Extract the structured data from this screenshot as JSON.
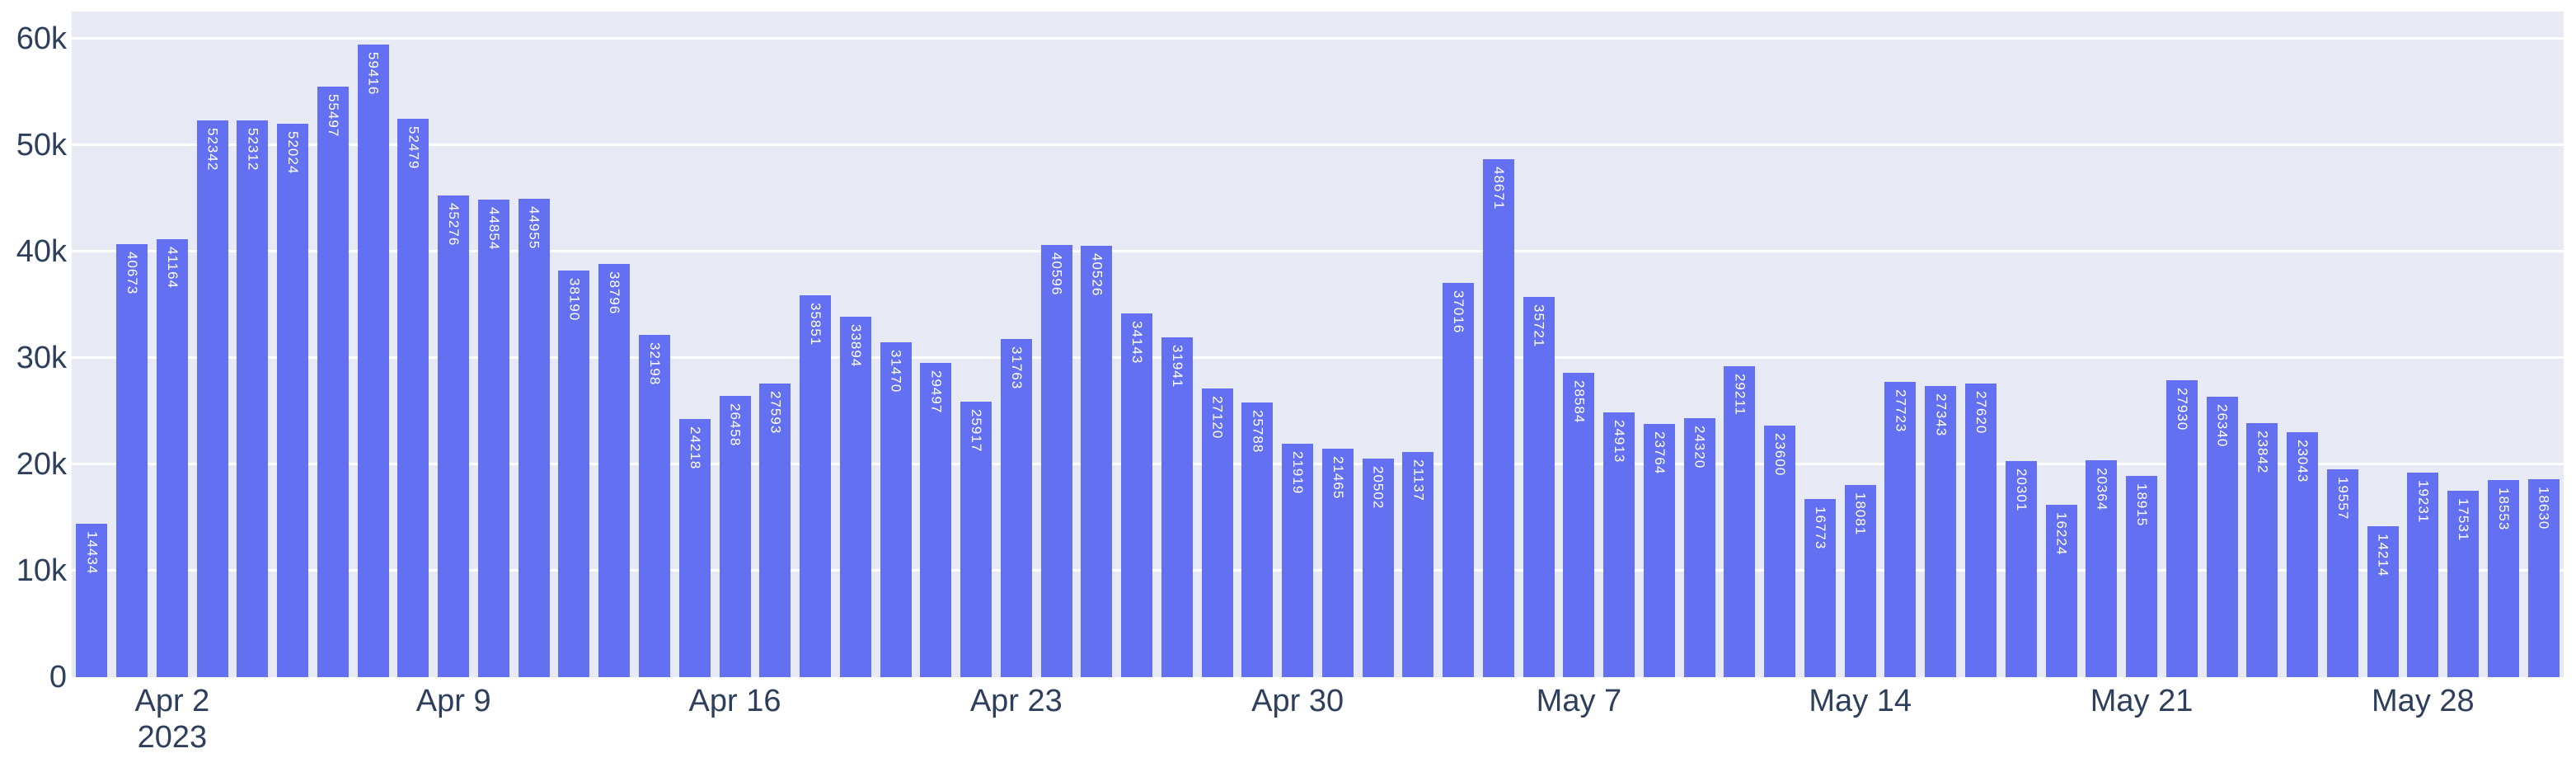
{
  "colors": {
    "paper_bg": "#FFFFFF",
    "plot_bg": "#E7E9F4",
    "bar_fill": "#6470F2",
    "grid": "#FFFFFF",
    "tick_text": "#2E3F5C",
    "bar_label_text": "#FFFFFF"
  },
  "chart_data": {
    "type": "bar",
    "title": "",
    "xlabel": "",
    "ylabel": "",
    "legend": "none",
    "grid": "horizontal-white",
    "ylim": [
      0,
      62500
    ],
    "x": [
      "2023-03-31",
      "2023-04-01",
      "2023-04-02",
      "2023-04-03",
      "2023-04-04",
      "2023-04-05",
      "2023-04-06",
      "2023-04-07",
      "2023-04-08",
      "2023-04-09",
      "2023-04-10",
      "2023-04-11",
      "2023-04-12",
      "2023-04-13",
      "2023-04-14",
      "2023-04-15",
      "2023-04-16",
      "2023-04-17",
      "2023-04-18",
      "2023-04-19",
      "2023-04-20",
      "2023-04-21",
      "2023-04-22",
      "2023-04-23",
      "2023-04-24",
      "2023-04-25",
      "2023-04-26",
      "2023-04-27",
      "2023-04-28",
      "2023-04-29",
      "2023-04-30",
      "2023-05-01",
      "2023-05-02",
      "2023-05-03",
      "2023-05-04",
      "2023-05-05",
      "2023-05-06",
      "2023-05-07",
      "2023-05-08",
      "2023-05-09",
      "2023-05-10",
      "2023-05-11",
      "2023-05-12",
      "2023-05-13",
      "2023-05-14",
      "2023-05-15",
      "2023-05-16",
      "2023-05-17",
      "2023-05-18",
      "2023-05-19",
      "2023-05-20",
      "2023-05-21",
      "2023-05-22",
      "2023-05-23",
      "2023-05-24",
      "2023-05-25",
      "2023-05-26",
      "2023-05-27",
      "2023-05-28",
      "2023-05-29",
      "2023-05-30",
      "2023-05-31"
    ],
    "values": [
      14434,
      40673,
      41164,
      52342,
      52312,
      52024,
      55497,
      59416,
      52479,
      45276,
      44854,
      44955,
      38190,
      38796,
      32198,
      24218,
      26458,
      27593,
      35851,
      33894,
      31470,
      29497,
      25917,
      31763,
      40596,
      40526,
      34143,
      31941,
      27120,
      25788,
      21919,
      21465,
      20502,
      21137,
      37016,
      48671,
      35721,
      28584,
      24913,
      23764,
      24320,
      29211,
      23600,
      16773,
      18081,
      27723,
      27343,
      27620,
      20301,
      16224,
      20364,
      18915,
      27930,
      26340,
      23842,
      23043,
      19557,
      14214,
      19231,
      17531,
      18553,
      18630
    ],
    "bar_value_labels_shown": true,
    "x_ticks": [
      {
        "index": 2,
        "label": "Apr 2",
        "sublabel": "2023"
      },
      {
        "index": 9,
        "label": "Apr 9"
      },
      {
        "index": 16,
        "label": "Apr 16"
      },
      {
        "index": 23,
        "label": "Apr 23"
      },
      {
        "index": 30,
        "label": "Apr 30"
      },
      {
        "index": 37,
        "label": "May 7"
      },
      {
        "index": 44,
        "label": "May 14"
      },
      {
        "index": 51,
        "label": "May 21"
      },
      {
        "index": 58,
        "label": "May 28"
      }
    ],
    "y_ticks": [
      {
        "value": 0,
        "label": "0"
      },
      {
        "value": 10000,
        "label": "10k"
      },
      {
        "value": 20000,
        "label": "20k"
      },
      {
        "value": 30000,
        "label": "30k"
      },
      {
        "value": 40000,
        "label": "40k"
      },
      {
        "value": 50000,
        "label": "50k"
      },
      {
        "value": 60000,
        "label": "60k"
      }
    ]
  }
}
